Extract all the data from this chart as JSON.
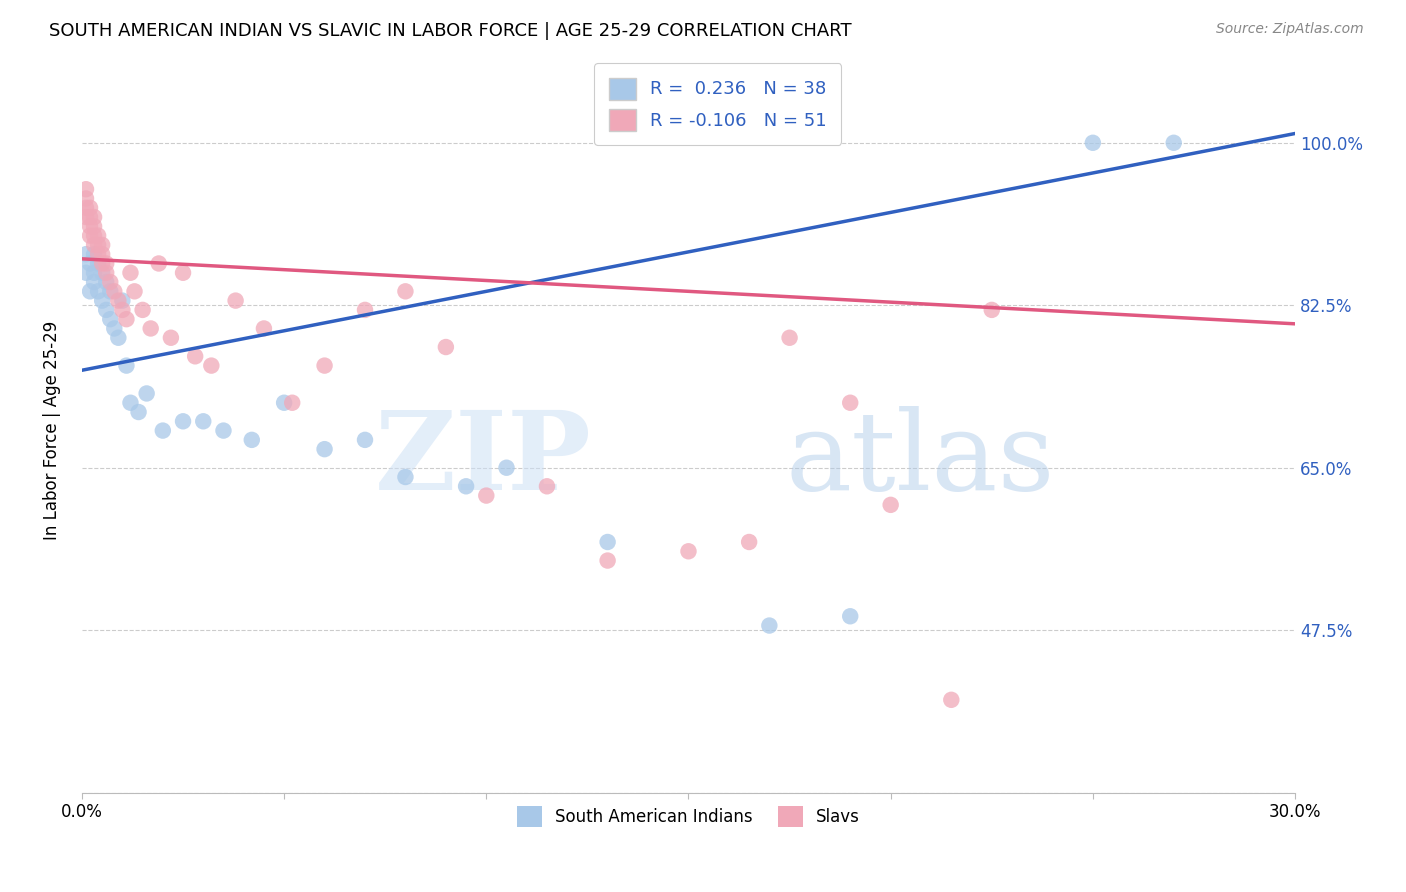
{
  "title": "SOUTH AMERICAN INDIAN VS SLAVIC IN LABOR FORCE | AGE 25-29 CORRELATION CHART",
  "source": "Source: ZipAtlas.com",
  "ylabel": "In Labor Force | Age 25-29",
  "xlim": [
    0.0,
    0.3
  ],
  "ylim": [
    0.3,
    1.08
  ],
  "xticks": [
    0.0,
    0.05,
    0.1,
    0.15,
    0.2,
    0.25,
    0.3
  ],
  "xticklabels": [
    "0.0%",
    "",
    "",
    "",
    "",
    "",
    "30.0%"
  ],
  "ytick_positions": [
    0.3,
    0.475,
    0.65,
    0.825,
    1.0
  ],
  "ytick_labels": [
    "",
    "47.5%",
    "65.0%",
    "82.5%",
    "100.0%"
  ],
  "blue_R": 0.236,
  "blue_N": 38,
  "pink_R": -0.106,
  "pink_N": 51,
  "blue_color": "#a8c8e8",
  "pink_color": "#f0a8b8",
  "trend_blue_color": "#3060c0",
  "trend_pink_color": "#e05880",
  "legend_label_blue": "South American Indians",
  "legend_label_pink": "Slavs",
  "blue_x": [
    0.001,
    0.001,
    0.002,
    0.002,
    0.003,
    0.003,
    0.003,
    0.004,
    0.004,
    0.005,
    0.005,
    0.006,
    0.006,
    0.007,
    0.007,
    0.008,
    0.009,
    0.01,
    0.011,
    0.012,
    0.014,
    0.016,
    0.02,
    0.025,
    0.03,
    0.035,
    0.042,
    0.05,
    0.06,
    0.07,
    0.08,
    0.095,
    0.105,
    0.13,
    0.17,
    0.19,
    0.25,
    0.27
  ],
  "blue_y": [
    0.86,
    0.88,
    0.84,
    0.87,
    0.85,
    0.86,
    0.88,
    0.84,
    0.87,
    0.83,
    0.86,
    0.82,
    0.85,
    0.81,
    0.84,
    0.8,
    0.79,
    0.83,
    0.76,
    0.72,
    0.71,
    0.73,
    0.69,
    0.7,
    0.7,
    0.69,
    0.68,
    0.72,
    0.67,
    0.68,
    0.64,
    0.63,
    0.65,
    0.57,
    0.48,
    0.49,
    1.0,
    1.0
  ],
  "pink_x": [
    0.001,
    0.001,
    0.001,
    0.001,
    0.002,
    0.002,
    0.002,
    0.002,
    0.003,
    0.003,
    0.003,
    0.003,
    0.004,
    0.004,
    0.004,
    0.005,
    0.005,
    0.005,
    0.006,
    0.006,
    0.007,
    0.008,
    0.009,
    0.01,
    0.011,
    0.012,
    0.013,
    0.015,
    0.017,
    0.019,
    0.022,
    0.025,
    0.028,
    0.032,
    0.038,
    0.045,
    0.052,
    0.06,
    0.07,
    0.08,
    0.09,
    0.1,
    0.115,
    0.13,
    0.15,
    0.165,
    0.175,
    0.19,
    0.2,
    0.215,
    0.225
  ],
  "pink_y": [
    0.92,
    0.93,
    0.94,
    0.95,
    0.9,
    0.91,
    0.92,
    0.93,
    0.89,
    0.9,
    0.91,
    0.92,
    0.88,
    0.89,
    0.9,
    0.87,
    0.88,
    0.89,
    0.86,
    0.87,
    0.85,
    0.84,
    0.83,
    0.82,
    0.81,
    0.86,
    0.84,
    0.82,
    0.8,
    0.87,
    0.79,
    0.86,
    0.77,
    0.76,
    0.83,
    0.8,
    0.72,
    0.76,
    0.82,
    0.84,
    0.78,
    0.62,
    0.63,
    0.55,
    0.56,
    0.57,
    0.79,
    0.72,
    0.61,
    0.4,
    0.82
  ],
  "blue_trend_x0": 0.0,
  "blue_trend_y0": 0.755,
  "blue_trend_x1": 0.3,
  "blue_trend_y1": 1.01,
  "pink_trend_x0": 0.0,
  "pink_trend_y0": 0.875,
  "pink_trend_x1": 0.3,
  "pink_trend_y1": 0.805
}
